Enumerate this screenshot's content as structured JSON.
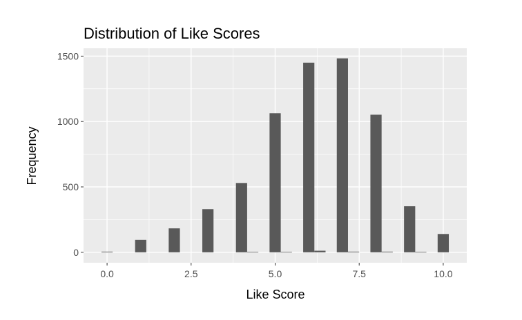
{
  "chart_data": {
    "type": "bar",
    "title": "Distribution of Like Scores",
    "xlabel": "Like Score",
    "ylabel": "Frequency",
    "xlim": [
      -0.7,
      10.7
    ],
    "ylim": [
      -80,
      1560
    ],
    "x_ticks": [
      0,
      2.5,
      5,
      7.5,
      10
    ],
    "x_tick_labels": [
      "0.0",
      "2.5",
      "5.0",
      "7.5",
      "10.0"
    ],
    "y_ticks": [
      0,
      500,
      1000,
      1500
    ],
    "y_tick_labels": [
      "0",
      "500",
      "1000",
      "1500"
    ],
    "grid": true,
    "legend": "none",
    "bin_width": 0.333,
    "bins": [
      {
        "x": 0.0,
        "count": 5
      },
      {
        "x": 1.0,
        "count": 95
      },
      {
        "x": 2.0,
        "count": 183
      },
      {
        "x": 3.0,
        "count": 330
      },
      {
        "x": 4.0,
        "count": 530
      },
      {
        "x": 4.333,
        "count": 3
      },
      {
        "x": 5.0,
        "count": 1063
      },
      {
        "x": 5.333,
        "count": 3
      },
      {
        "x": 6.0,
        "count": 1450
      },
      {
        "x": 6.333,
        "count": 12
      },
      {
        "x": 7.0,
        "count": 1483
      },
      {
        "x": 7.333,
        "count": 5
      },
      {
        "x": 8.0,
        "count": 1052
      },
      {
        "x": 8.333,
        "count": 5
      },
      {
        "x": 9.0,
        "count": 352
      },
      {
        "x": 9.333,
        "count": 3
      },
      {
        "x": 10.0,
        "count": 140
      }
    ],
    "colors": {
      "panel_background": "#ebebeb",
      "grid_major": "#ffffff",
      "bar_fill": "#595959",
      "tick_text": "#4d4d4d",
      "tick_mark": "#333333"
    }
  }
}
